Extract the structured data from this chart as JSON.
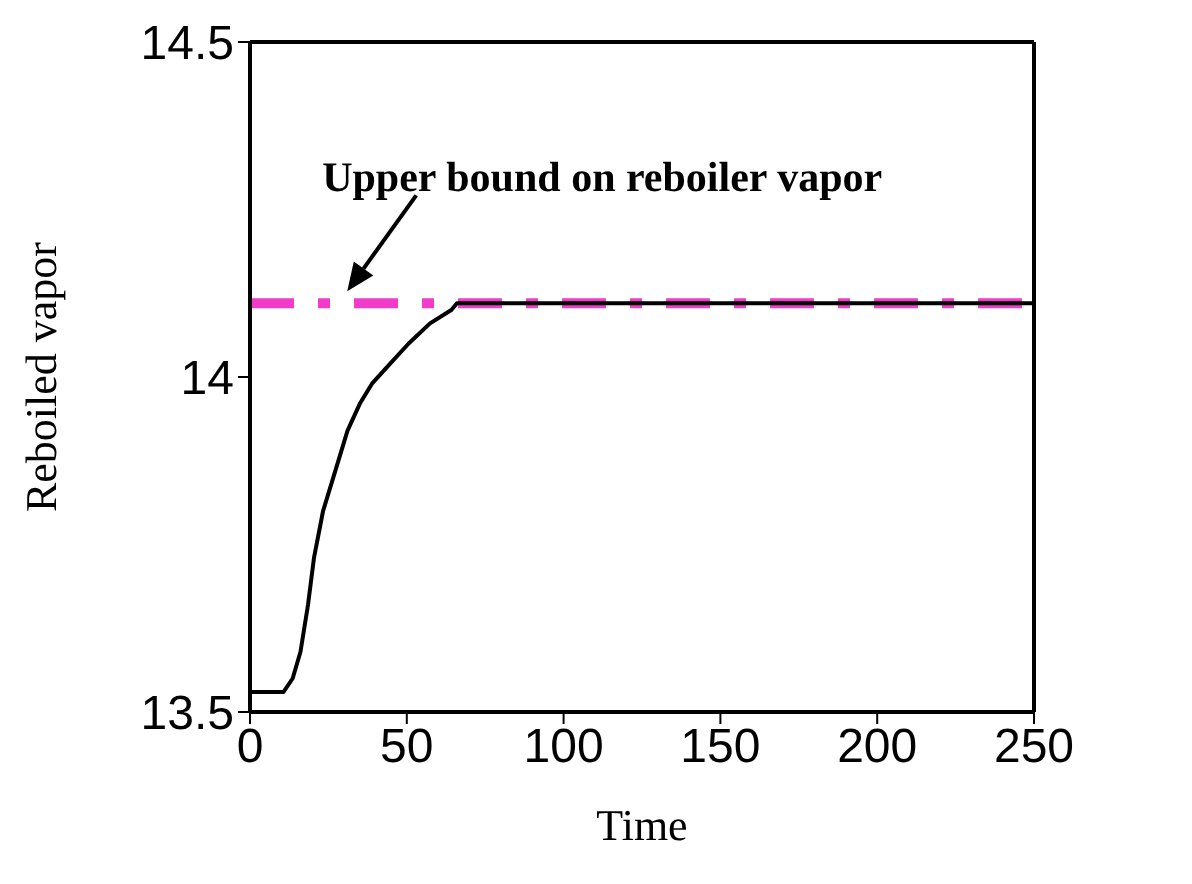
{
  "chart_data": {
    "type": "line",
    "xlabel": "Time",
    "ylabel": "Reboiled vapor",
    "x": [
      0,
      10.7,
      13.6,
      16.1,
      18.5,
      20.4,
      23.3,
      27.2,
      31.1,
      35,
      38.9,
      44.7,
      50.6,
      57.4,
      64.2,
      66,
      100,
      150,
      200,
      250
    ],
    "series": [
      {
        "color": "#000000",
        "values": [
          13.53,
          13.53,
          13.55,
          13.59,
          13.66,
          13.73,
          13.8,
          13.86,
          13.92,
          13.96,
          13.99,
          14.02,
          14.05,
          14.08,
          14.1,
          14.11,
          14.11,
          14.11,
          14.11,
          14.11
        ]
      }
    ],
    "xlim": [
      0,
      250
    ],
    "xticks": [
      0,
      50,
      100,
      150,
      200,
      250
    ],
    "ylim": [
      13.5,
      14.5
    ],
    "yticks": [
      13.5,
      14,
      14.5
    ],
    "ref_lines": [
      {
        "axis": "y",
        "value": 14.11,
        "label": "Upper bound on reboiler vapor",
        "color": "#f03cc8",
        "line_style": "dashed"
      }
    ],
    "grid": false,
    "legend": false,
    "marker": "none",
    "line_style": "solid"
  }
}
